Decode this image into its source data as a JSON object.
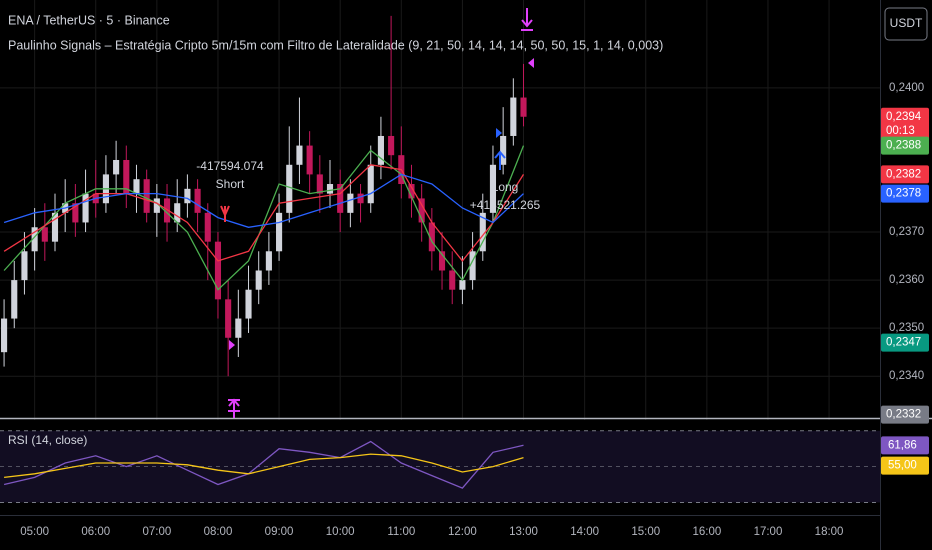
{
  "chart_data": {
    "type": "candlestick",
    "symbol_title": "ENA / TetherUS · 5 · Binance",
    "indicator_title": "Paulinho Signals – Estratégia Cripto 5m/15m com Filtro de Lateralidade (9, 21, 50, 14, 14, 14, 50, 50, 15, 1, 14, 0,003)",
    "currency_button": "USDT",
    "countdown": "00:13",
    "up_color": "#d1d4dc",
    "down_color": "#c2185b",
    "xlim": [
      266,
      1130
    ],
    "ylim": [
      0.23313,
      0.24183
    ],
    "xticks": [
      {
        "value": 300,
        "label": "05:00"
      },
      {
        "value": 360,
        "label": "06:00"
      },
      {
        "value": 420,
        "label": "07:00"
      },
      {
        "value": 480,
        "label": "08:00"
      },
      {
        "value": 540,
        "label": "09:00"
      },
      {
        "value": 600,
        "label": "10:00"
      },
      {
        "value": 660,
        "label": "11:00"
      },
      {
        "value": 720,
        "label": "12:00"
      },
      {
        "value": 780,
        "label": "13:00"
      },
      {
        "value": 840,
        "label": "14:00"
      },
      {
        "value": 900,
        "label": "15:00"
      },
      {
        "value": 960,
        "label": "16:00"
      },
      {
        "value": 1020,
        "label": "17:00"
      },
      {
        "value": 1080,
        "label": "18:00"
      }
    ],
    "yticks": [
      {
        "value": 0.234,
        "label": "0,2340"
      },
      {
        "value": 0.235,
        "label": "0,2350"
      },
      {
        "value": 0.236,
        "label": "0,2360"
      },
      {
        "value": 0.237,
        "label": "0,2370"
      },
      {
        "value": 0.24,
        "label": "0,2400"
      }
    ],
    "price_badges": [
      {
        "value": 0.2394,
        "label": "0,2394",
        "color": "#f23645"
      },
      {
        "value": 0.2388,
        "label": "0,2388",
        "color": "#4caf50"
      },
      {
        "value": 0.2382,
        "label": "0,2382",
        "color": "#f23645"
      },
      {
        "value": 0.2378,
        "label": "0,2378",
        "color": "#2962ff"
      },
      {
        "value": 0.2347,
        "label": "0,2347",
        "color": "#089981"
      },
      {
        "value": 0.2332,
        "label": "0,2332",
        "color": "#787b86"
      }
    ],
    "candles": {
      "x": [
        270,
        280,
        290,
        300,
        310,
        320,
        330,
        340,
        350,
        360,
        370,
        380,
        390,
        400,
        410,
        420,
        430,
        440,
        450,
        460,
        470,
        480,
        490,
        500,
        510,
        520,
        530,
        540,
        550,
        560,
        570,
        580,
        590,
        600,
        610,
        620,
        630,
        640,
        650,
        660,
        670,
        680,
        690,
        700,
        710,
        720,
        730,
        740,
        750,
        760,
        770,
        780
      ],
      "open": [
        0.2345,
        0.2352,
        0.236,
        0.2366,
        0.2371,
        0.2368,
        0.2374,
        0.2376,
        0.2372,
        0.2378,
        0.2376,
        0.2382,
        0.2385,
        0.2378,
        0.2381,
        0.2374,
        0.2377,
        0.2372,
        0.2376,
        0.2379,
        0.2374,
        0.2368,
        0.2356,
        0.2348,
        0.2352,
        0.2358,
        0.2362,
        0.2366,
        0.2374,
        0.2384,
        0.2388,
        0.2382,
        0.2378,
        0.238,
        0.2374,
        0.2378,
        0.2376,
        0.2384,
        0.239,
        0.2386,
        0.238,
        0.2377,
        0.2372,
        0.2366,
        0.2362,
        0.2358,
        0.236,
        0.2366,
        0.2374,
        0.2384,
        0.239,
        0.2398
      ],
      "high": [
        0.2356,
        0.2364,
        0.237,
        0.2375,
        0.2376,
        0.2378,
        0.2381,
        0.238,
        0.2383,
        0.2385,
        0.2386,
        0.2389,
        0.2388,
        0.2384,
        0.2383,
        0.238,
        0.238,
        0.2381,
        0.2382,
        0.2381,
        0.2376,
        0.237,
        0.236,
        0.2358,
        0.2363,
        0.2366,
        0.237,
        0.2378,
        0.2392,
        0.2398,
        0.2391,
        0.2386,
        0.2385,
        0.2383,
        0.2381,
        0.238,
        0.2388,
        0.2394,
        0.2415,
        0.2392,
        0.2384,
        0.238,
        0.2375,
        0.237,
        0.2366,
        0.2365,
        0.237,
        0.2378,
        0.2388,
        0.2396,
        0.2402,
        0.2405
      ],
      "low": [
        0.2342,
        0.235,
        0.2357,
        0.2362,
        0.2364,
        0.2366,
        0.237,
        0.2369,
        0.237,
        0.2373,
        0.2374,
        0.2378,
        0.2375,
        0.2374,
        0.2372,
        0.2369,
        0.2368,
        0.237,
        0.2373,
        0.237,
        0.236,
        0.2352,
        0.234,
        0.2344,
        0.2349,
        0.2355,
        0.2359,
        0.2364,
        0.2372,
        0.238,
        0.2378,
        0.2374,
        0.2375,
        0.237,
        0.2371,
        0.2372,
        0.2374,
        0.2381,
        0.2383,
        0.2377,
        0.2373,
        0.2368,
        0.2362,
        0.2358,
        0.2355,
        0.2355,
        0.2358,
        0.2364,
        0.2372,
        0.2382,
        0.2388,
        0.2392
      ],
      "close": [
        0.2352,
        0.236,
        0.2366,
        0.2371,
        0.2368,
        0.2374,
        0.2376,
        0.2372,
        0.2378,
        0.2376,
        0.2382,
        0.2385,
        0.2378,
        0.2381,
        0.2374,
        0.2377,
        0.2372,
        0.2376,
        0.2379,
        0.2374,
        0.2368,
        0.2356,
        0.2348,
        0.2352,
        0.2358,
        0.2362,
        0.2366,
        0.2374,
        0.2384,
        0.2388,
        0.2382,
        0.2378,
        0.238,
        0.2374,
        0.2378,
        0.2376,
        0.2384,
        0.239,
        0.2386,
        0.238,
        0.2377,
        0.2372,
        0.2366,
        0.2362,
        0.2358,
        0.236,
        0.2366,
        0.2374,
        0.2384,
        0.239,
        0.2398,
        0.2394
      ]
    },
    "series": [
      {
        "color": "#4caf50",
        "x": [
          270,
          300,
          330,
          360,
          390,
          420,
          450,
          480,
          510,
          540,
          570,
          600,
          630,
          660,
          690,
          720,
          750,
          780
        ],
        "values": [
          0.2362,
          0.2369,
          0.2376,
          0.2379,
          0.2379,
          0.2376,
          0.237,
          0.2358,
          0.2364,
          0.238,
          0.2378,
          0.2379,
          0.2387,
          0.2382,
          0.2368,
          0.236,
          0.2372,
          0.2388
        ]
      },
      {
        "color": "#f23645",
        "x": [
          270,
          300,
          330,
          360,
          390,
          420,
          450,
          480,
          510,
          540,
          570,
          600,
          630,
          660,
          690,
          720,
          750,
          780
        ],
        "values": [
          0.2366,
          0.237,
          0.2374,
          0.2378,
          0.2378,
          0.2376,
          0.2372,
          0.2364,
          0.2366,
          0.2376,
          0.2377,
          0.2378,
          0.2384,
          0.2383,
          0.2372,
          0.2364,
          0.2372,
          0.2382
        ]
      },
      {
        "color": "#2962ff",
        "x": [
          270,
          300,
          330,
          360,
          390,
          420,
          450,
          480,
          510,
          540,
          570,
          600,
          630,
          660,
          690,
          720,
          750,
          780
        ],
        "values": [
          0.2372,
          0.2374,
          0.2375,
          0.2377,
          0.2378,
          0.2378,
          0.2377,
          0.2373,
          0.2371,
          0.2372,
          0.2374,
          0.2376,
          0.2378,
          0.2382,
          0.238,
          0.2375,
          0.2372,
          0.2378
        ]
      }
    ],
    "annotations": [
      {
        "lines": [
          "-417594.074",
          "Short"
        ]
      },
      {
        "lines": [
          "Long",
          "+413521.265"
        ]
      }
    ],
    "rsi": {
      "title": "RSI (14, close)",
      "ylim": [
        23,
        76
      ],
      "levels": [
        30,
        50,
        70
      ],
      "x": [
        270,
        300,
        330,
        360,
        390,
        420,
        450,
        480,
        510,
        540,
        570,
        600,
        630,
        660,
        690,
        720,
        750,
        780
      ],
      "series": [
        {
          "color": "#7e57c2",
          "label": "61,86",
          "values": [
            40,
            44,
            52,
            56,
            50,
            56,
            48,
            40,
            46,
            60,
            58,
            55,
            64,
            52,
            45,
            38,
            58,
            61.86
          ]
        },
        {
          "color": "#f5c518",
          "label": "55,00",
          "values": [
            44,
            46,
            49,
            52,
            52,
            52,
            51,
            48,
            46,
            50,
            54,
            55,
            57,
            56,
            52,
            47,
            50,
            55
          ]
        }
      ]
    }
  }
}
